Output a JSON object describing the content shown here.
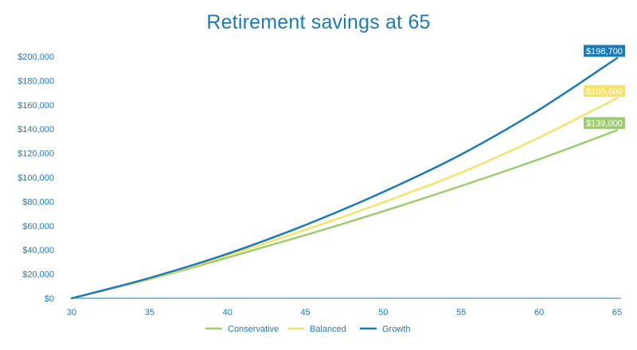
{
  "chart_data": {
    "type": "line",
    "title": "Retirement savings at 65",
    "xlabel": "",
    "ylabel": "",
    "xlim": [
      30,
      65
    ],
    "ylim": [
      0,
      200000
    ],
    "x_ticks": [
      30,
      35,
      40,
      45,
      50,
      55,
      60,
      65
    ],
    "y_ticks": [
      0,
      20000,
      40000,
      60000,
      80000,
      100000,
      120000,
      140000,
      160000,
      180000,
      200000
    ],
    "y_tick_labels": [
      "$0",
      "$20,000",
      "$40,000",
      "$60,000",
      "$80,000",
      "$100,000",
      "$120,000",
      "$140,000",
      "$160,000",
      "$180,000",
      "$200,000"
    ],
    "grid": false,
    "legend_position": "bottom-center",
    "x": [
      30,
      35,
      40,
      45,
      50,
      55,
      60,
      65
    ],
    "series": [
      {
        "name": "Conservative",
        "color": "#9dcd70",
        "values": [
          0,
          15800,
          33600,
          52300,
          72000,
          93000,
          115000,
          139000
        ],
        "end_label": "$139,000"
      },
      {
        "name": "Balanced",
        "color": "#f7e26b",
        "values": [
          0,
          16300,
          35500,
          56600,
          79400,
          104000,
          133000,
          165600
        ],
        "end_label": "$165,600"
      },
      {
        "name": "Growth",
        "color": "#1b7ab8",
        "values": [
          0,
          16800,
          36800,
          60600,
          88000,
          119000,
          156000,
          198700
        ],
        "end_label": "$198,700"
      }
    ]
  }
}
